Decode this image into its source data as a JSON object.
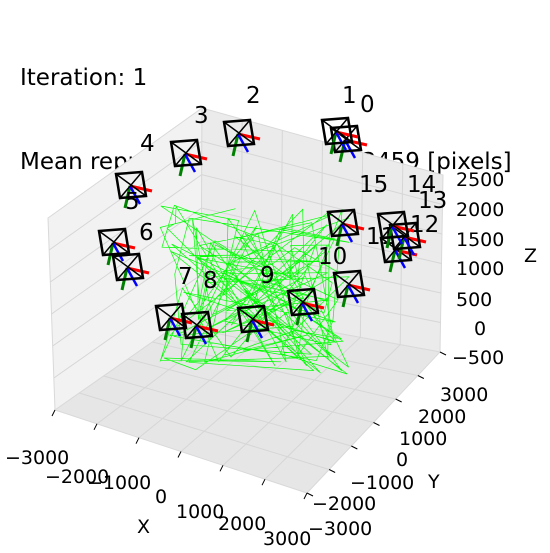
{
  "chart_data": {
    "type": "scatter",
    "title_lines": [
      "Iteration: 1",
      "Mean reprojection error = 69.3459 [pixels]"
    ],
    "xlabel": "X",
    "ylabel": "Y",
    "zlabel": "Z",
    "xlim": [
      -3000,
      3000
    ],
    "ylim": [
      -3000,
      3000
    ],
    "zlim": [
      -500,
      2500
    ],
    "x_ticks": [
      "−3000",
      "−2000",
      "−1000",
      "0",
      "1000",
      "2000",
      "3000"
    ],
    "y_ticks": [
      "−3000",
      "−2000",
      "−1000",
      "0",
      "1000",
      "2000",
      "3000"
    ],
    "z_ticks": [
      "−500",
      "0",
      "500",
      "1000",
      "1500",
      "2000",
      "2500"
    ],
    "grid": true,
    "colors": {
      "camera": "#000000",
      "axis_x": "#ff0000",
      "axis_y": "#008000",
      "axis_z": "#0000ff",
      "points": "#00ff00",
      "pane": "#f2f2f2",
      "grid": "#d6d6d6"
    },
    "cameras": [
      {
        "label": "0"
      },
      {
        "label": "1"
      },
      {
        "label": "2"
      },
      {
        "label": "3"
      },
      {
        "label": "4"
      },
      {
        "label": "5"
      },
      {
        "label": "6"
      },
      {
        "label": "7"
      },
      {
        "label": "8"
      },
      {
        "label": "9"
      },
      {
        "label": "10"
      },
      {
        "label": "11"
      },
      {
        "label": "12"
      },
      {
        "label": "13"
      },
      {
        "label": "14"
      },
      {
        "label": "15"
      }
    ]
  }
}
